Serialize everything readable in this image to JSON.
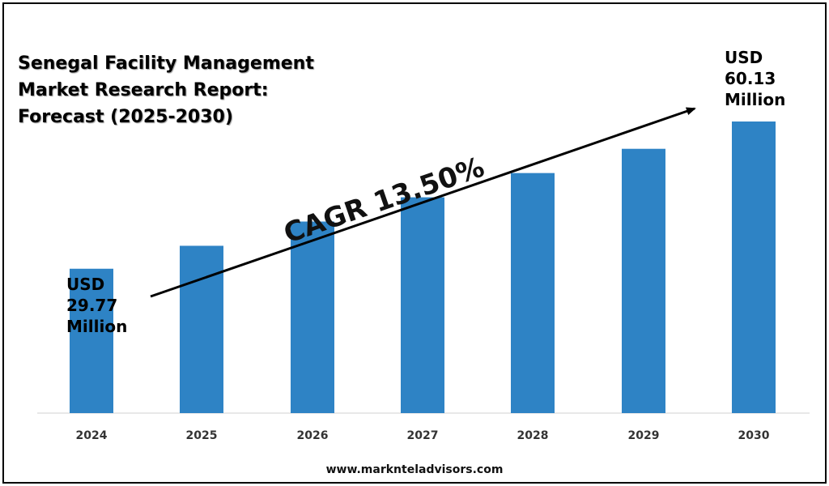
{
  "title": {
    "line1": "Senegal Facility Management",
    "line2": "Market Research Report:",
    "line3": "Forecast (2025-2030)"
  },
  "cagr_label": "CAGR 13.50%",
  "website": "www.marknteladvisors.com",
  "colors": {
    "bar": "#2E83C5",
    "text": "#000000",
    "arrow": "#000000",
    "baseline": "#d0d0d0"
  },
  "chart_data": {
    "type": "bar",
    "categories": [
      "2024",
      "2025",
      "2026",
      "2027",
      "2028",
      "2029",
      "2030"
    ],
    "values": [
      29.77,
      34.5,
      39.5,
      44.5,
      49.5,
      54.5,
      60.13
    ],
    "ylim": [
      0,
      66
    ],
    "grid": false,
    "annotations": [
      {
        "category": "2024",
        "lines": [
          "USD",
          "29.77",
          "Million"
        ]
      },
      {
        "category": "2030",
        "lines": [
          "USD",
          "60.13",
          "Million"
        ]
      }
    ]
  }
}
